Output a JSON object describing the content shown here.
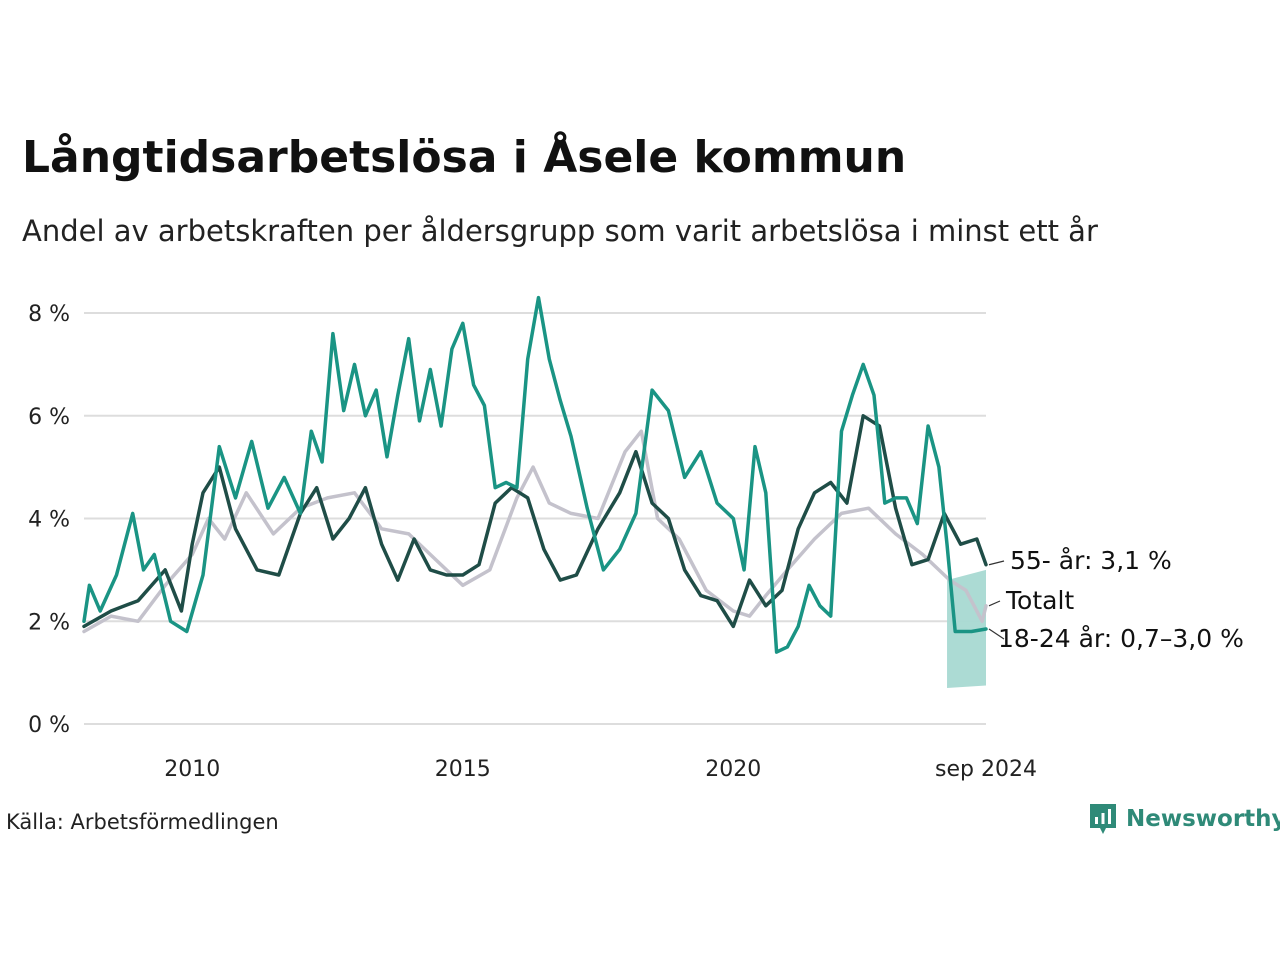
{
  "title": "Långtidsarbetslösa i Åsele kommun",
  "subtitle": "Andel av arbetskraften per åldersgrupp som varit arbetslösa i minst ett år",
  "source": "Källa: Arbetsförmedlingen",
  "logo": {
    "text": "Newsworthy",
    "icon": "bar-chart-speech-icon"
  },
  "colors": {
    "age_55": "#1f4d47",
    "total": "#c4c2cc",
    "age_18_24": "#1a9484",
    "band": "#a8d9d2",
    "grid": "#dddddd"
  },
  "chart_data": {
    "type": "line",
    "ylim": [
      0,
      8
    ],
    "y_ticks": [
      0,
      2,
      4,
      6,
      8
    ],
    "y_tick_labels": [
      "0 %",
      "2 %",
      "4 %",
      "6 %",
      "8 %"
    ],
    "x_ticks": [
      2010,
      2015,
      2020,
      2024.67
    ],
    "x_tick_labels": [
      "2010",
      "2015",
      "2020",
      "sep 2024"
    ],
    "xlim": [
      2008.0,
      2024.67
    ],
    "grid": true,
    "series": [
      {
        "name": "Totalt",
        "end_label": "Totalt",
        "color": "#c4c2cc",
        "x": [
          2008.0,
          2008.5,
          2009.0,
          2009.5,
          2010.0,
          2010.3,
          2010.6,
          2011.0,
          2011.5,
          2012.0,
          2012.5,
          2013.0,
          2013.5,
          2014.0,
          2014.5,
          2015.0,
          2015.5,
          2016.0,
          2016.3,
          2016.6,
          2017.0,
          2017.5,
          2018.0,
          2018.3,
          2018.6,
          2019.0,
          2019.5,
          2020.0,
          2020.3,
          2020.6,
          2021.0,
          2021.5,
          2022.0,
          2022.5,
          2023.0,
          2023.5,
          2024.0,
          2024.3,
          2024.6,
          2024.67
        ],
        "values": [
          1.8,
          2.1,
          2.0,
          2.7,
          3.3,
          4.0,
          3.6,
          4.5,
          3.7,
          4.2,
          4.4,
          4.5,
          3.8,
          3.7,
          3.2,
          2.7,
          3.0,
          4.4,
          5.0,
          4.3,
          4.1,
          4.0,
          5.3,
          5.7,
          4.0,
          3.6,
          2.6,
          2.2,
          2.1,
          2.5,
          3.0,
          3.6,
          4.1,
          4.2,
          3.7,
          3.3,
          2.8,
          2.6,
          2.0,
          2.3
        ]
      },
      {
        "name": "55- år",
        "end_label": "55- år: 3,1 %",
        "color": "#1f4d47",
        "x": [
          2008.0,
          2008.5,
          2009.0,
          2009.5,
          2009.8,
          2010.0,
          2010.2,
          2010.5,
          2010.8,
          2011.2,
          2011.6,
          2012.0,
          2012.3,
          2012.6,
          2012.9,
          2013.2,
          2013.5,
          2013.8,
          2014.1,
          2014.4,
          2014.7,
          2015.0,
          2015.3,
          2015.6,
          2015.9,
          2016.2,
          2016.5,
          2016.8,
          2017.1,
          2017.5,
          2017.9,
          2018.2,
          2018.5,
          2018.8,
          2019.1,
          2019.4,
          2019.7,
          2020.0,
          2020.3,
          2020.6,
          2020.9,
          2021.2,
          2021.5,
          2021.8,
          2022.1,
          2022.4,
          2022.7,
          2023.0,
          2023.3,
          2023.6,
          2023.9,
          2024.2,
          2024.5,
          2024.67
        ],
        "values": [
          1.9,
          2.2,
          2.4,
          3.0,
          2.2,
          3.5,
          4.5,
          5.0,
          3.8,
          3.0,
          2.9,
          4.1,
          4.6,
          3.6,
          4.0,
          4.6,
          3.5,
          2.8,
          3.6,
          3.0,
          2.9,
          2.9,
          3.1,
          4.3,
          4.6,
          4.4,
          3.4,
          2.8,
          2.9,
          3.8,
          4.5,
          5.3,
          4.3,
          4.0,
          3.0,
          2.5,
          2.4,
          1.9,
          2.8,
          2.3,
          2.6,
          3.8,
          4.5,
          4.7,
          4.3,
          6.0,
          5.8,
          4.2,
          3.1,
          3.2,
          4.1,
          3.5,
          3.6,
          3.1
        ]
      },
      {
        "name": "18-24 år",
        "end_label": "18-24 år: 0,7–3,0 %",
        "color": "#1a9484",
        "x": [
          2008.0,
          2008.1,
          2008.3,
          2008.6,
          2008.9,
          2009.1,
          2009.3,
          2009.6,
          2009.9,
          2010.2,
          2010.5,
          2010.8,
          2011.1,
          2011.4,
          2011.7,
          2012.0,
          2012.2,
          2012.4,
          2012.6,
          2012.8,
          2013.0,
          2013.2,
          2013.4,
          2013.6,
          2013.8,
          2014.0,
          2014.2,
          2014.4,
          2014.6,
          2014.8,
          2015.0,
          2015.2,
          2015.4,
          2015.6,
          2015.8,
          2016.0,
          2016.2,
          2016.4,
          2016.6,
          2016.8,
          2017.0,
          2017.3,
          2017.6,
          2017.9,
          2018.2,
          2018.5,
          2018.8,
          2019.1,
          2019.4,
          2019.7,
          2020.0,
          2020.2,
          2020.4,
          2020.6,
          2020.8,
          2021.0,
          2021.2,
          2021.4,
          2021.6,
          2021.8,
          2022.0,
          2022.2,
          2022.4,
          2022.6,
          2022.8,
          2023.0,
          2023.2,
          2023.4,
          2023.6,
          2023.8,
          2023.95,
          2024.1,
          2024.4,
          2024.67
        ],
        "values": [
          2.0,
          2.7,
          2.2,
          2.9,
          4.1,
          3.0,
          3.3,
          2.0,
          1.8,
          2.9,
          5.4,
          4.4,
          5.5,
          4.2,
          4.8,
          4.1,
          5.7,
          5.1,
          7.6,
          6.1,
          7.0,
          6.0,
          6.5,
          5.2,
          6.4,
          7.5,
          5.9,
          6.9,
          5.8,
          7.3,
          7.8,
          6.6,
          6.2,
          4.6,
          4.7,
          4.6,
          7.1,
          8.3,
          7.1,
          6.3,
          5.6,
          4.2,
          3.0,
          3.4,
          4.1,
          6.5,
          6.1,
          4.8,
          5.3,
          4.3,
          4.0,
          3.0,
          5.4,
          4.5,
          1.4,
          1.5,
          1.9,
          2.7,
          2.3,
          2.1,
          5.7,
          6.4,
          7.0,
          6.4,
          4.3,
          4.4,
          4.4,
          3.9,
          5.8,
          5.0,
          3.5,
          1.8,
          1.8,
          1.85
        ]
      }
    ],
    "band": {
      "name": "18-24 år",
      "color": "#a8d9d2",
      "x": [
        2023.95,
        2024.67
      ],
      "low": [
        0.7,
        0.75
      ],
      "high": [
        2.8,
        3.0
      ]
    }
  }
}
